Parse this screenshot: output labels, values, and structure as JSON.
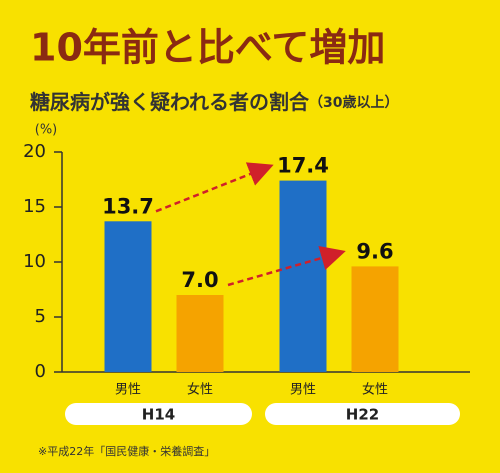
{
  "chart_data": {
    "type": "bar",
    "title": "10年前と比べて増加",
    "subtitle": "糖尿病が強く疑われる者の割合",
    "subtitle_note": "（30歳以上）",
    "y_unit": "(%)",
    "categories": [
      "男性",
      "女性",
      "男性",
      "女性"
    ],
    "groups": [
      "H14",
      "H22"
    ],
    "values": [
      13.7,
      7.0,
      17.4,
      9.6
    ],
    "value_labels": [
      "13.7",
      "7.0",
      "17.4",
      "9.6"
    ],
    "colors": [
      "#1f6fc6",
      "#f5a300",
      "#1f6fc6",
      "#f5a300"
    ],
    "arrow_color": "#d0202a",
    "ylim": [
      0,
      20
    ],
    "yticks": [
      0,
      5,
      10,
      15,
      20
    ],
    "footnote": "※平成22年「国民健康・栄養調査」"
  }
}
